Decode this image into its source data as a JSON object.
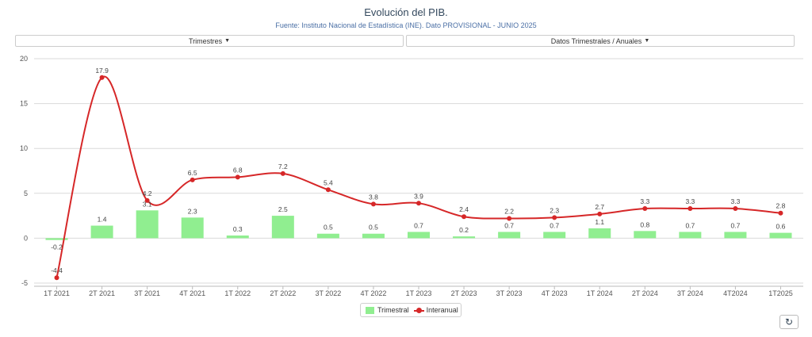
{
  "header": {
    "title": "Evolución del PIB.",
    "subtitle": "Fuente: Instituto Nacional de Estadística (INE). Dato PROVISIONAL - JUNIO 2025"
  },
  "controls": {
    "left_dropdown": "Trimestres",
    "right_dropdown": "Datos Trimestrales / Anuales",
    "refresh_icon": "refresh-icon"
  },
  "colors": {
    "bar": "#90ee90",
    "line": "#d62728",
    "grid": "#d9d9d9"
  },
  "legend": {
    "bar_label": "Trimestral",
    "line_label": "Interanual"
  },
  "chart_data": {
    "type": "bar",
    "categories": [
      "1T 2021",
      "2T 2021",
      "3T 2021",
      "4T 2021",
      "1T 2022",
      "2T 2022",
      "3T 2022",
      "4T 2022",
      "1T 2023",
      "2T 2023",
      "3T 2023",
      "4T 2023",
      "1T 2024",
      "2T 2024",
      "3T 2024",
      "4T2024",
      "1T2025"
    ],
    "series": [
      {
        "name": "Trimestral",
        "type": "bar",
        "values": [
          -0.2,
          1.4,
          3.1,
          2.3,
          0.3,
          2.5,
          0.5,
          0.5,
          0.7,
          0.2,
          0.7,
          0.7,
          1.1,
          0.8,
          0.7,
          0.7,
          0.6
        ],
        "labels": [
          "-0.2",
          "1.4",
          "3.1",
          "2.3",
          "0.3",
          "2.5",
          "0.5",
          "0.5",
          "0.7",
          "0.2",
          "0.7",
          "0.7",
          "1.1",
          "0.8",
          "0.7",
          "0.7",
          "0.6"
        ]
      },
      {
        "name": "Interanual",
        "type": "line",
        "values": [
          -4.4,
          17.9,
          4.2,
          6.5,
          6.8,
          7.2,
          5.4,
          3.8,
          3.9,
          2.4,
          2.2,
          2.3,
          2.7,
          3.3,
          3.3,
          3.3,
          2.8
        ],
        "labels": [
          "-4.4",
          "17.9",
          "4.2",
          "6.5",
          "6.8",
          "7.2",
          "5.4",
          "3.8",
          "3.9",
          "2.4",
          "2.2",
          "2.3",
          "2.7",
          "3.3",
          "3.3",
          "3.3",
          "2.8"
        ]
      }
    ],
    "yticks": [
      "20",
      "15",
      "10",
      "5",
      "0",
      "-5"
    ],
    "ytick_values": [
      20,
      15,
      10,
      5,
      0,
      -5
    ],
    "ylim": [
      -5,
      20
    ],
    "grid": true,
    "legend_position": "bottom"
  }
}
